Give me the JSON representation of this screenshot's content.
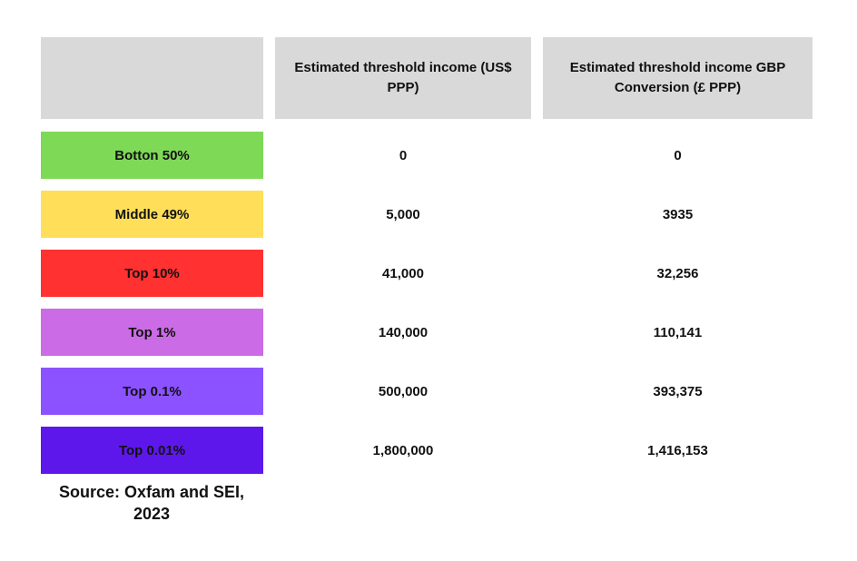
{
  "table": {
    "header": {
      "blank": "",
      "usd": "Estimated threshold income (US$ PPP)",
      "gbp": "Estimated threshold income GBP Conversion (£ PPP)",
      "background": "#d9d9d9"
    },
    "rows": [
      {
        "label": "Botton 50%",
        "color": "#7ed957",
        "usd": "0",
        "gbp": "0"
      },
      {
        "label": "Middle 49%",
        "color": "#ffde59",
        "usd": "5,000",
        "gbp": "3935"
      },
      {
        "label": "Top 10%",
        "color": "#ff3131",
        "usd": "41,000",
        "gbp": "32,256"
      },
      {
        "label": "Top 1%",
        "color": "#cb6ce6",
        "usd": "140,000",
        "gbp": "110,141"
      },
      {
        "label": "Top 0.1%",
        "color": "#8c52ff",
        "usd": "500,000",
        "gbp": "393,375"
      },
      {
        "label": "Top 0.01%",
        "color": "#5e17eb",
        "usd": "1,800,000",
        "gbp": "1,416,153"
      }
    ]
  },
  "source_note": "Source: Oxfam and SEI, 2023",
  "chart_data": {
    "type": "table",
    "title": "",
    "columns": [
      "",
      "Estimated threshold income (US$ PPP)",
      "Estimated threshold income GBP Conversion (£ PPP)"
    ],
    "categories": [
      "Botton 50%",
      "Middle 49%",
      "Top 10%",
      "Top 1%",
      "Top 0.1%",
      "Top 0.01%"
    ],
    "series": [
      {
        "name": "Estimated threshold income (US$ PPP)",
        "values": [
          0,
          5000,
          41000,
          140000,
          500000,
          1800000
        ]
      },
      {
        "name": "Estimated threshold income GBP Conversion (£ PPP)",
        "values": [
          0,
          3935,
          32256,
          110141,
          393375,
          1416153
        ]
      }
    ],
    "row_colors": [
      "#7ed957",
      "#ffde59",
      "#ff3131",
      "#cb6ce6",
      "#8c52ff",
      "#5e17eb"
    ],
    "annotations": [
      "Source: Oxfam and SEI, 2023"
    ],
    "legend": "none",
    "grid": false
  }
}
